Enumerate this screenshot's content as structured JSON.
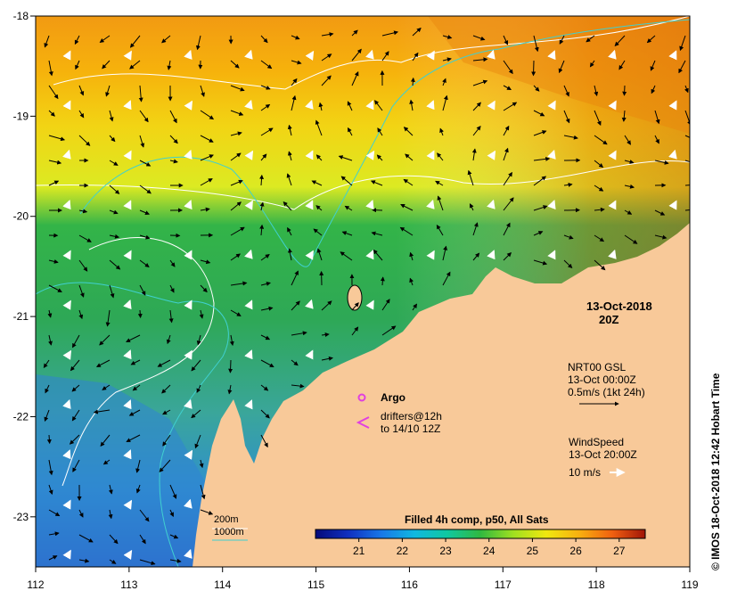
{
  "map": {
    "lon_range": [
      112,
      119
    ],
    "lat_range": [
      -23.5,
      -18
    ],
    "lon_ticks": [
      "112",
      "113",
      "114",
      "115",
      "116",
      "117",
      "118",
      "119"
    ],
    "lat_ticks": [
      "-18",
      "-19",
      "-20",
      "-21",
      "-22",
      "-23"
    ],
    "land_color": "#f8c999"
  },
  "timestamp": {
    "date": "13-Oct-2018",
    "hour": "20Z"
  },
  "current_legend": {
    "product": "NRT00 GSL",
    "time": "13-Oct 00:00Z",
    "scale": "0.5m/s (1kt 24h)"
  },
  "wind_legend": {
    "product": "WindSpeed",
    "time": "13-Oct 20:00Z",
    "scale": "10 m/s"
  },
  "argo_legend": {
    "label": "Argo",
    "marker_color": "#e040e0"
  },
  "drifter_legend": {
    "line1": "drifters@12h",
    "line2": "to 14/10 12Z",
    "marker_color": "#e040e0"
  },
  "isobath_legend": {
    "shallow": "200m",
    "deep": "1000m",
    "shallow_color": "#ffffff",
    "deep_color": "#40d0d0"
  },
  "colorbar": {
    "title": "Filled 4h comp, p50, All Sats",
    "min": 20,
    "max": 27.6,
    "ticks": [
      "21",
      "22",
      "23",
      "24",
      "25",
      "26",
      "27"
    ]
  },
  "copyright": "©  IMOS 18-Oct-2018 12:42 Hobart Time"
}
